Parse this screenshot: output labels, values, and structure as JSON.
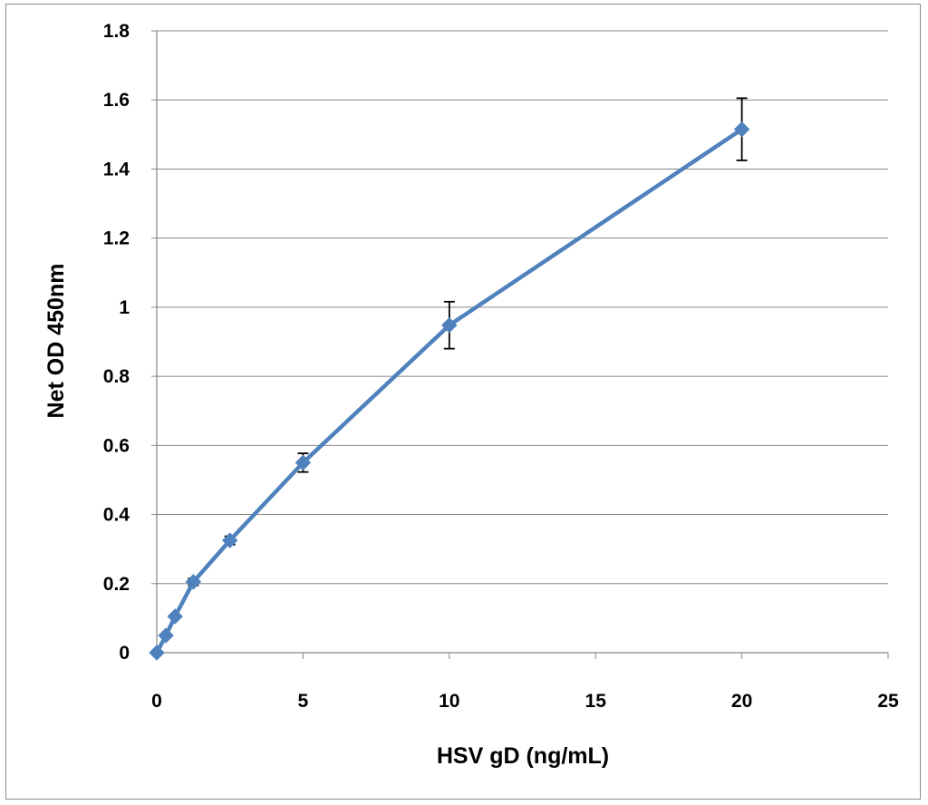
{
  "chart_data": {
    "type": "scatter",
    "title": "",
    "xlabel": "HSV gD (ng/mL)",
    "ylabel": "Net OD 450nm",
    "xlim": [
      0,
      25
    ],
    "ylim": [
      0,
      1.8
    ],
    "x_ticks": [
      "0",
      "5",
      "10",
      "15",
      "20",
      "25"
    ],
    "y_ticks": [
      "0",
      "0.2",
      "0.4",
      "0.6",
      "0.8",
      "1",
      "1.2",
      "1.4",
      "1.6",
      "1.8"
    ],
    "grid": "horizontal",
    "legend": "none",
    "line_color": "#4f81bd",
    "marker": "diamond",
    "series": [
      {
        "x": [
          0,
          0.3125,
          0.625,
          1.25,
          2.5,
          5,
          10,
          20
        ],
        "y": [
          0.0,
          0.05,
          0.105,
          0.205,
          0.325,
          0.55,
          0.948,
          1.515
        ],
        "err": [
          0.0,
          0.0,
          0.0,
          0.01,
          0.012,
          0.027,
          0.068,
          0.09
        ]
      }
    ]
  }
}
